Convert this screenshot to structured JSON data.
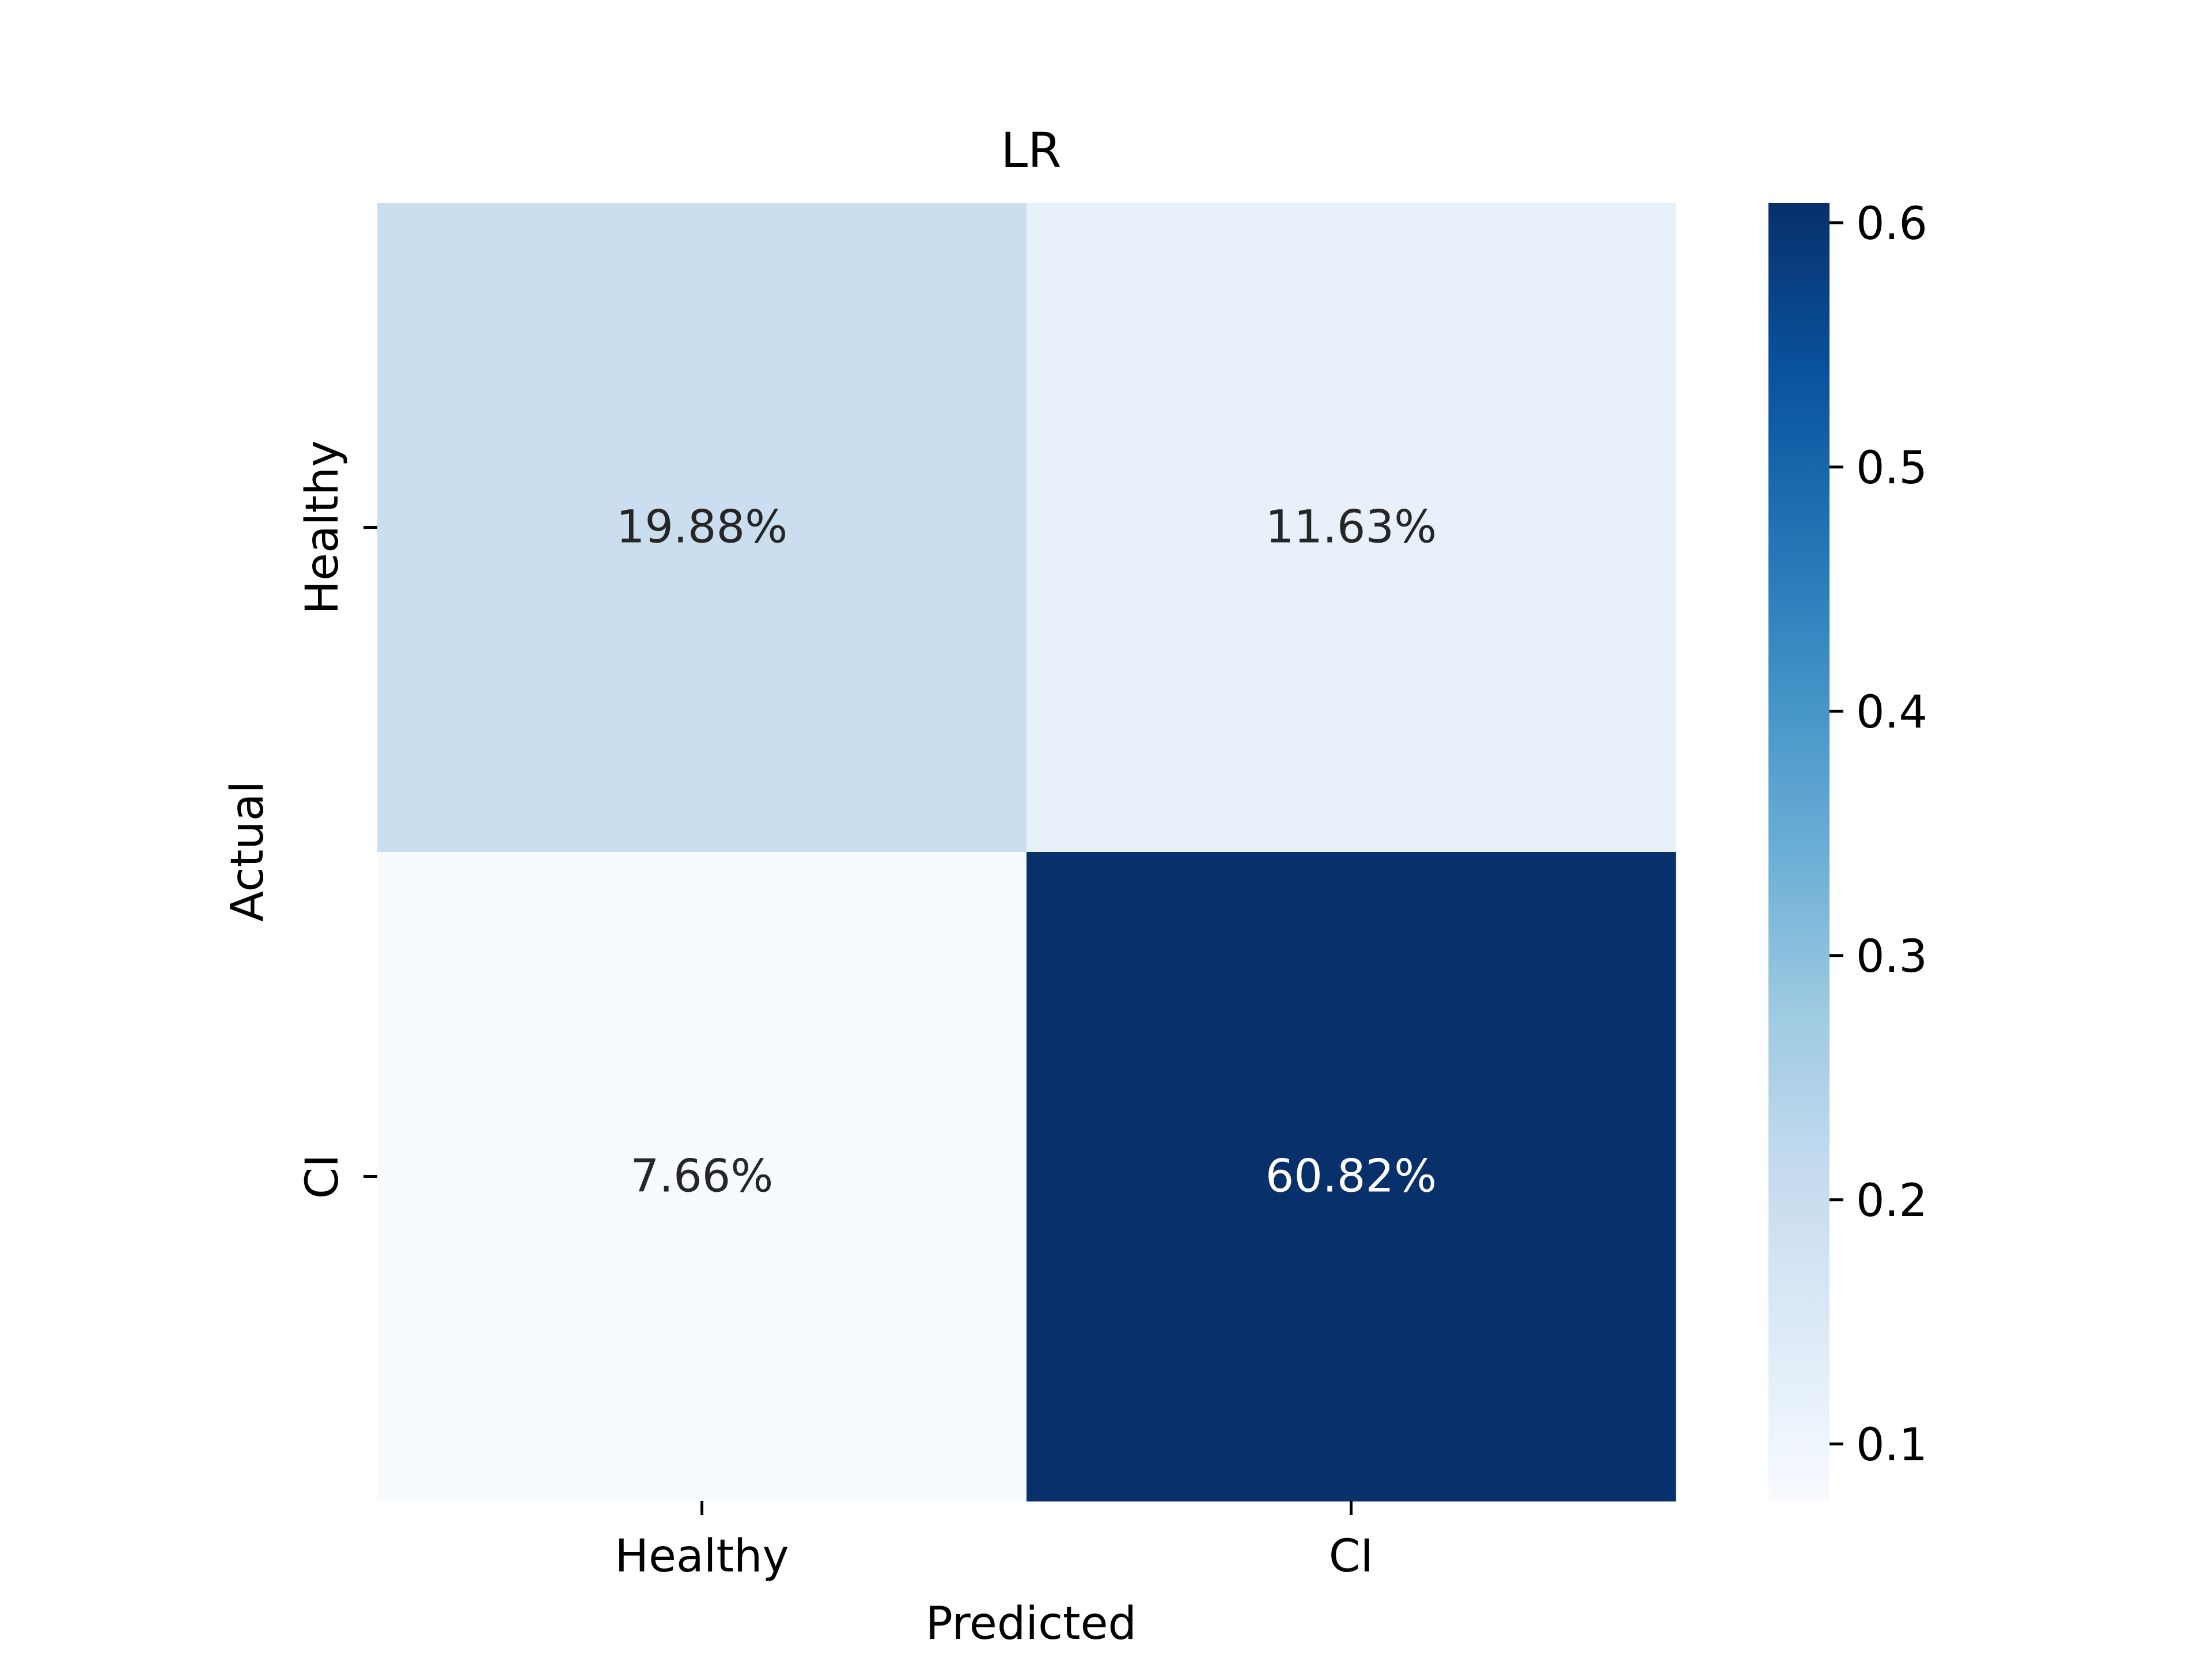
{
  "chart_data": {
    "type": "heatmap",
    "title": "LR",
    "xlabel": "Predicted",
    "ylabel": "Actual",
    "x_categories": [
      "Healthy",
      "CI"
    ],
    "y_categories": [
      "Healthy",
      "CI"
    ],
    "values": [
      [
        0.1988,
        0.1163
      ],
      [
        0.0766,
        0.6082
      ]
    ],
    "cell_labels": [
      [
        "19.88%",
        "11.63%"
      ],
      [
        "7.66%",
        "60.82%"
      ]
    ],
    "colormap": "Blues",
    "colorbar": {
      "range": [
        0.0766,
        0.6082
      ],
      "ticks": [
        0.1,
        0.2,
        0.3,
        0.4,
        0.5,
        0.6
      ],
      "tick_labels": [
        "0.1",
        "0.2",
        "0.3",
        "0.4",
        "0.5",
        "0.6"
      ]
    },
    "grid": false,
    "legend": "colorbar-right"
  }
}
